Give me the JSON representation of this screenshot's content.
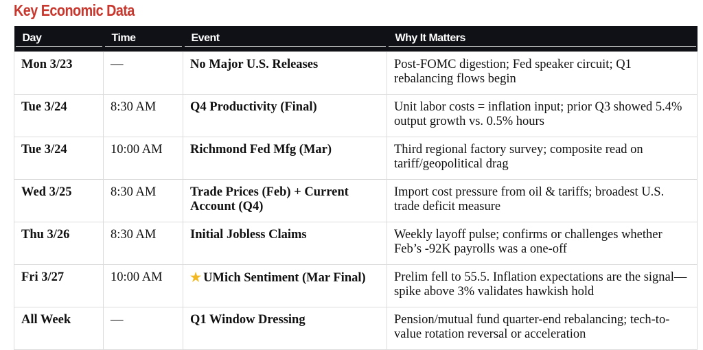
{
  "title": "Key Economic Data",
  "columns": [
    "Day",
    "Time",
    "Event",
    "Why It Matters"
  ],
  "rows": [
    {
      "day": "Mon 3/23",
      "time": "—",
      "event": "No Major U.S. Releases",
      "star": false,
      "why": "Post-FOMC digestion; Fed speaker circuit; Q1 rebalancing flows begin"
    },
    {
      "day": "Tue 3/24",
      "time": "8:30 AM",
      "event": "Q4 Productivity (Final)",
      "star": false,
      "why": "Unit labor costs = inflation input; prior Q3 showed 5.4% output growth vs. 0.5% hours"
    },
    {
      "day": "Tue 3/24",
      "time": "10:00 AM",
      "event": "Richmond Fed Mfg (Mar)",
      "star": false,
      "why": "Third regional factory survey; composite read on tariff/geopolitical drag"
    },
    {
      "day": "Wed 3/25",
      "time": "8:30 AM",
      "event": "Trade Prices (Feb) + Current Account (Q4)",
      "star": false,
      "why": "Import cost pressure from oil & tariffs; broadest U.S. trade deficit measure"
    },
    {
      "day": "Thu 3/26",
      "time": "8:30 AM",
      "event": "Initial Jobless Claims",
      "star": false,
      "why": "Weekly layoff pulse; confirms or challenges whether Feb’s -92K payrolls was a one-off"
    },
    {
      "day": "Fri 3/27",
      "time": "10:00 AM",
      "event": "UMich Sentiment (Mar Final)",
      "star": true,
      "why": "Prelim fell to 55.5. Inflation expectations are the signal—spike above 3% validates hawkish hold"
    },
    {
      "day": "All Week",
      "time": "—",
      "event": "Q1 Window Dressing",
      "star": false,
      "why": "Pension/mutual fund quarter-end rebalancing; tech-to-value rotation reversal or acceleration"
    }
  ],
  "icons": {
    "highlight": "star-icon"
  },
  "colors": {
    "title": "#c8372d",
    "header_bg": "#0f1117",
    "star": "#f2b824"
  }
}
